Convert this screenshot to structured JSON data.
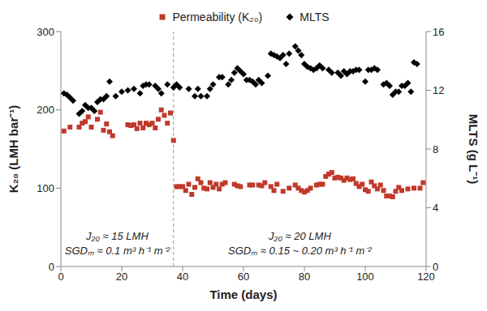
{
  "chart_data": {
    "type": "scatter",
    "legend": "top",
    "grid": false,
    "x_label": "Time (days)",
    "y_label": "K₂₀ (LMH bar⁻¹)",
    "y2_label": "MLTS (g L⁻¹)",
    "xlim": [
      0,
      120
    ],
    "xticks": [
      0,
      20,
      40,
      60,
      80,
      100,
      120
    ],
    "ylim": [
      0,
      300
    ],
    "yticks": [
      0,
      100,
      200,
      300
    ],
    "y2lim": [
      0,
      16
    ],
    "y2ticks": [
      0,
      4,
      8,
      12,
      16
    ],
    "reference_lines": [
      {
        "x": 37,
        "line_style": "dashed"
      }
    ],
    "annotations": [
      {
        "lines": [
          "J₂₀ ≈ 15 LMH",
          "SGDₘ ≈ 0.1 m³ h⁻¹ m⁻²"
        ]
      },
      {
        "lines": [
          "J₂₀ ≈ 20 LMH",
          "SGDₘ ≈ 0.15 ~ 0.20 m³ h⁻¹ m⁻²"
        ]
      }
    ],
    "series": [
      {
        "name": "Permeability  (K₂₀)",
        "color": "#c0392b",
        "marker": "square",
        "axis": "y",
        "x": [
          1,
          3,
          6,
          7,
          8,
          9,
          10,
          12,
          13,
          14,
          15,
          16,
          17,
          22,
          23,
          24,
          25,
          26,
          27,
          28,
          29,
          30,
          31,
          32,
          33,
          34,
          35,
          36,
          37,
          38,
          39,
          40,
          41,
          42,
          43,
          44,
          45,
          46,
          47,
          48,
          49,
          50,
          51,
          52,
          53,
          54,
          57,
          58,
          59,
          62,
          63,
          65,
          66,
          67,
          69,
          70,
          71,
          73,
          75,
          77,
          78,
          79,
          80,
          81,
          82,
          84,
          85,
          86,
          87,
          88,
          89,
          90,
          91,
          92,
          93,
          94,
          95,
          96,
          97,
          98,
          99,
          100,
          101,
          102,
          103,
          104,
          105,
          106,
          107,
          108,
          109,
          110,
          111,
          112,
          114,
          116,
          118,
          119
        ],
        "values": [
          173,
          178,
          178,
          183,
          185,
          191,
          178,
          188,
          197,
          174,
          182,
          172,
          167,
          181,
          180,
          181,
          176,
          183,
          177,
          183,
          181,
          183,
          177,
          188,
          200,
          193,
          183,
          196,
          161,
          102,
          102,
          102,
          97,
          105,
          92,
          101,
          112,
          107,
          100,
          99,
          107,
          101,
          105,
          99,
          105,
          107,
          105,
          103,
          102,
          104,
          104,
          104,
          103,
          107,
          102,
          97,
          105,
          96,
          100,
          104,
          100,
          97,
          95,
          97,
          100,
          104,
          105,
          105,
          115,
          118,
          120,
          113,
          114,
          113,
          110,
          113,
          111,
          112,
          106,
          102,
          105,
          98,
          96,
          108,
          103,
          99,
          104,
          97,
          90,
          90,
          89,
          96,
          101,
          97,
          99,
          100,
          100,
          107
        ]
      },
      {
        "name": "MLTS",
        "color": "#000000",
        "marker": "diamond",
        "axis": "y2",
        "x": [
          1,
          2,
          3,
          4,
          6,
          7,
          8,
          9,
          10,
          11,
          12,
          13,
          14,
          15,
          16,
          18,
          20,
          22,
          24,
          26,
          27,
          28,
          29,
          31,
          32,
          33,
          35,
          37,
          38,
          39,
          42,
          44,
          45,
          46,
          48,
          49,
          50,
          52,
          53,
          55,
          56,
          57,
          58,
          59,
          60,
          61,
          62,
          63,
          64,
          65,
          66,
          68,
          69,
          70,
          71,
          72,
          73,
          74,
          75,
          77,
          78,
          79,
          80,
          81,
          82,
          83,
          84,
          85,
          86,
          88,
          89,
          91,
          92,
          93,
          94,
          95,
          96,
          97,
          98,
          100,
          101,
          102,
          103,
          104,
          106,
          107,
          108,
          109,
          110,
          111,
          112,
          113,
          114,
          115,
          116,
          117
        ],
        "values": [
          11.8,
          11.7,
          11.5,
          11.3,
          10.4,
          10.6,
          11.0,
          10.8,
          10.8,
          10.6,
          11.2,
          11.4,
          11.4,
          11.6,
          12.6,
          11.6,
          11.9,
          12.0,
          12.1,
          11.8,
          12.3,
          12.4,
          12.4,
          12.3,
          12.1,
          11.8,
          12.4,
          12.2,
          12.4,
          12.2,
          12.1,
          11.6,
          12.1,
          11.6,
          11.6,
          12.1,
          12.4,
          12.9,
          12.9,
          12.4,
          12.7,
          13.2,
          13.5,
          13.3,
          13.1,
          12.7,
          12.7,
          12.6,
          12.4,
          12.7,
          12.5,
          13.0,
          14.5,
          14.4,
          14.3,
          14.2,
          14.4,
          13.8,
          14.5,
          15.0,
          14.7,
          14.4,
          13.8,
          13.6,
          13.5,
          13.4,
          13.5,
          13.7,
          13.5,
          13.4,
          13.2,
          13.2,
          13.0,
          13.3,
          13.1,
          13.3,
          13.3,
          13.4,
          13.4,
          12.6,
          13.4,
          13.4,
          13.5,
          13.4,
          12.4,
          12.5,
          12.3,
          11.7,
          11.9,
          11.9,
          12.3,
          12.3,
          12.5,
          11.9,
          13.9,
          13.8
        ]
      }
    ]
  }
}
